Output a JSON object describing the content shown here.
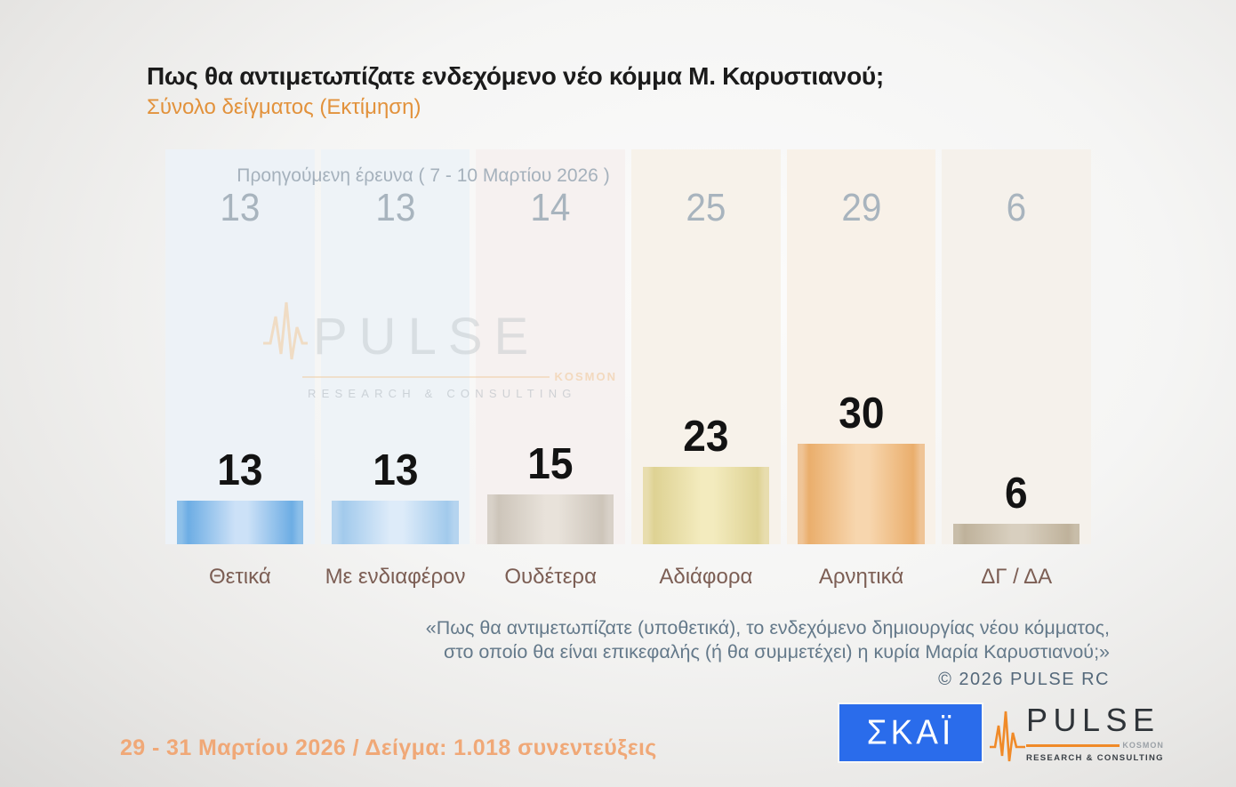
{
  "header": {
    "title": "Πως θα αντιμετωπίζατε ενδεχόμενο νέο κόμμα Μ. Καρυστιανού;",
    "subtitle": "Σύνολο δείγματος  (Εκτίμηση)"
  },
  "chart_data": {
    "type": "bar",
    "title": "Πως θα αντιμετωπίζατε ενδεχόμενο νέο κόμμα Μ. Καρυστιανού;",
    "subtitle": "Σύνολο δείγματος (Εκτίμηση)",
    "categories": [
      "Θετικά",
      "Με ενδιαφέρον",
      "Ουδέτερα",
      "Αδιάφορα",
      "Αρνητικά",
      "ΔΓ / ΔΑ"
    ],
    "series": [
      {
        "name": "Προηγούμενη έρευνα ( 7 - 10 Μαρτίου 2026 )",
        "values": [
          13,
          13,
          14,
          25,
          29,
          6
        ]
      },
      {
        "name": "29 - 31 Μαρτίου 2026",
        "values": [
          13,
          13,
          15,
          23,
          30,
          6
        ]
      }
    ],
    "ylim": [
      0,
      100
    ],
    "grid": false,
    "legend_position": "none",
    "column_bg_colors": [
      "#edf2f7",
      "#eef3f7",
      "#f6f1f0",
      "#f7f2ea",
      "#f8f1e8",
      "#f5f1eb"
    ],
    "bar_colors": [
      {
        "edge": "#8cbfe9",
        "dark": "#6dade4",
        "light": "#cce1f7"
      },
      {
        "edge": "#b5d4ef",
        "dark": "#a2caec",
        "light": "#ddebf9"
      },
      {
        "edge": "#d8d1c8",
        "dark": "#cdc5ba",
        "light": "#e8e2da"
      },
      {
        "edge": "#e8ddae",
        "dark": "#ded293",
        "light": "#f3ebbe"
      },
      {
        "edge": "#efc496",
        "dark": "#eaae6c",
        "light": "#f7d6ae"
      },
      {
        "edge": "#c8bda9",
        "dark": "#bfb29b",
        "light": "#d8cfbf"
      }
    ]
  },
  "prev_survey_label": "Προηγούμενη έρευνα ( 7 - 10 Μαρτίου 2026 )",
  "footnote": {
    "line1": "«Πως θα αντιμετωπίζατε (υποθετικά), το ενδεχόμενο δημιουργίας νέου κόμματος,",
    "line2": "στο οποίο θα είναι επικεφαλής (ή θα συμμετέχει) η κυρία Μαρία Καρυστιανού;»",
    "copyright": "©  2026  PULSE RC"
  },
  "footer": {
    "date_sample": "29 - 31  Μαρτίου 2026  /  Δείγμα:  1.018 συνεντεύξεις"
  },
  "watermark": {
    "word": "PULSE",
    "kosmon": "KOSMON",
    "research": "RESEARCH & CONSULTING"
  },
  "logos": {
    "skai": "ΣΚΑΪ",
    "pulse_word": "PULSE",
    "pulse_kosmon": "KOSMON",
    "pulse_research": "RESEARCH & CONSULTING"
  },
  "colors": {
    "subtitle_orange": "#e2923c",
    "footer_orange": "#f0a877",
    "skai_blue": "#2a6ceb",
    "pulse_orange": "#f08a28",
    "label_brown": "#7c5e54",
    "prev_gray": "#a8b4be",
    "footnote_gray": "#64798a"
  }
}
